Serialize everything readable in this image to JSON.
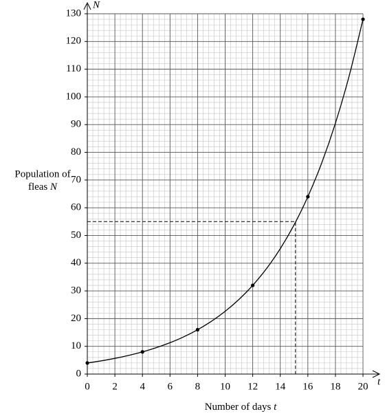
{
  "chart_data": {
    "type": "line",
    "x_label": "Number of days",
    "x_axis_symbol": "t",
    "y_label_lines": [
      "Population of",
      "fleas"
    ],
    "y_axis_symbol": "N",
    "xlim": [
      0,
      20
    ],
    "ylim": [
      0,
      130
    ],
    "xticks": [
      0,
      2,
      4,
      6,
      8,
      10,
      12,
      14,
      16,
      18,
      20
    ],
    "yticks": [
      0,
      10,
      20,
      30,
      40,
      50,
      60,
      70,
      80,
      90,
      100,
      110,
      120,
      130
    ],
    "grid": true,
    "minor_grid_divisions": 5,
    "series": [
      {
        "color": "#000000",
        "smooth": true,
        "x": [
          0,
          1,
          2,
          3,
          4,
          5,
          6,
          7,
          8,
          9,
          10,
          11,
          12,
          13,
          14,
          15,
          16,
          17,
          18,
          19,
          20
        ],
        "values": [
          4,
          4.76,
          5.66,
          6.73,
          8,
          9.51,
          11.31,
          13.45,
          16,
          19.03,
          22.63,
          26.91,
          32,
          38.05,
          45.25,
          53.82,
          64,
          76.11,
          90.51,
          107.63,
          128
        ]
      },
      {
        "color": "#000000",
        "markers": true,
        "x": [
          0,
          4,
          8,
          12,
          16,
          20
        ],
        "values": [
          4,
          8,
          16,
          32,
          64,
          128
        ]
      }
    ],
    "reading": {
      "x": 15.1,
      "y": 55
    }
  }
}
